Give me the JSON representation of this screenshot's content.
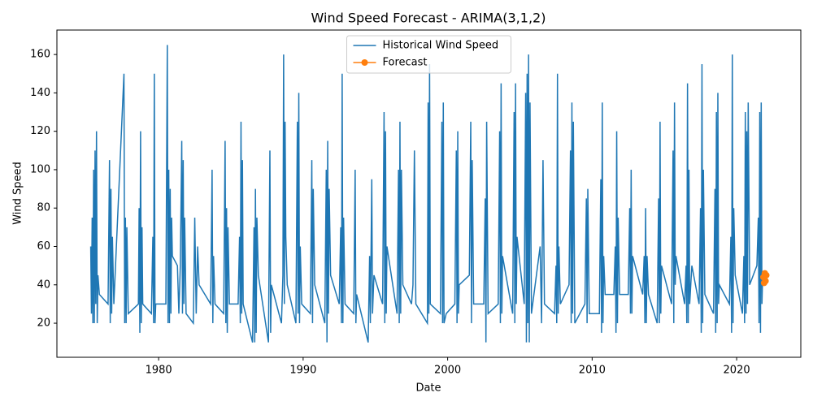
{
  "chart_data": {
    "type": "line",
    "title": "Wind Speed Forecast - ARIMA(3,1,2)",
    "xlabel": "Date",
    "ylabel": "Wind Speed",
    "xlim": [
      1972.96,
      2024.44
    ],
    "ylim": [
      2.25,
      172.75
    ],
    "xticks": [
      1980,
      1990,
      2000,
      2010,
      2020
    ],
    "yticks": [
      20,
      40,
      60,
      80,
      100,
      120,
      140,
      160
    ],
    "legend": "upper center",
    "series": [
      {
        "name": "Historical Wind Speed",
        "color": "#1f77b4",
        "marker": false,
        "x": [
          1975.3,
          1975.35,
          1975.4,
          1975.45,
          1975.5,
          1975.55,
          1975.6,
          1975.65,
          1975.7,
          1975.75,
          1975.8,
          1975.9,
          1976.5,
          1976.6,
          1976.65,
          1976.7,
          1976.75,
          1976.8,
          1976.9,
          1977.6,
          1977.65,
          1977.7,
          1977.75,
          1977.8,
          1977.9,
          1978.6,
          1978.65,
          1978.7,
          1978.75,
          1978.8,
          1978.85,
          1978.9,
          1979.5,
          1979.6,
          1979.65,
          1979.7,
          1979.75,
          1979.8,
          1980.5,
          1980.6,
          1980.65,
          1980.7,
          1980.75,
          1980.8,
          1980.85,
          1980.9,
          1980.95,
          1981.3,
          1981.4,
          1981.5,
          1981.6,
          1981.65,
          1981.7,
          1981.75,
          1981.8,
          1981.9,
          1982.4,
          1982.5,
          1982.6,
          1982.7,
          1982.8,
          1983.6,
          1983.7,
          1983.75,
          1983.8,
          1983.9,
          1984.5,
          1984.6,
          1984.65,
          1984.7,
          1984.75,
          1984.8,
          1984.9,
          1985.5,
          1985.6,
          1985.65,
          1985.7,
          1985.75,
          1985.8,
          1985.85,
          1986.5,
          1986.6,
          1986.65,
          1986.7,
          1986.75,
          1986.8,
          1986.9,
          1987.6,
          1987.7,
          1987.75,
          1987.8,
          1988.5,
          1988.6,
          1988.65,
          1988.7,
          1988.75,
          1988.8,
          1988.9,
          1989.5,
          1989.6,
          1989.65,
          1989.7,
          1989.75,
          1989.8,
          1989.9,
          1990.5,
          1990.6,
          1990.65,
          1990.7,
          1990.8,
          1991.5,
          1991.6,
          1991.65,
          1991.7,
          1991.75,
          1991.8,
          1991.9,
          1992.5,
          1992.6,
          1992.65,
          1992.7,
          1992.75,
          1992.8,
          1992.9,
          1993.5,
          1993.6,
          1993.65,
          1993.7,
          1994.5,
          1994.6,
          1994.65,
          1994.75,
          1994.8,
          1994.9,
          1995.5,
          1995.6,
          1995.65,
          1995.7,
          1995.75,
          1995.8,
          1996.5,
          1996.6,
          1996.65,
          1996.7,
          1996.75,
          1996.8,
          1996.9,
          1997.5,
          1997.6,
          1997.7,
          1997.8,
          1998.6,
          1998.65,
          1998.7,
          1998.75,
          1998.8,
          1999.5,
          1999.6,
          1999.65,
          1999.7,
          1999.75,
          1999.9,
          2000.5,
          2000.6,
          2000.65,
          2000.7,
          2000.75,
          2000.8,
          2001.5,
          2001.6,
          2001.65,
          2001.7,
          2001.8,
          2002.5,
          2002.6,
          2002.65,
          2002.7,
          2002.8,
          2003.5,
          2003.6,
          2003.65,
          2003.7,
          2003.75,
          2003.8,
          2004.5,
          2004.6,
          2004.65,
          2004.7,
          2004.75,
          2004.8,
          2005.3,
          2005.4,
          2005.45,
          2005.5,
          2005.55,
          2005.6,
          2005.65,
          2005.7,
          2005.8,
          2006.4,
          2006.5,
          2006.6,
          2006.7,
          2007.4,
          2007.5,
          2007.55,
          2007.6,
          2007.65,
          2007.7,
          2007.8,
          2008.4,
          2008.5,
          2008.55,
          2008.6,
          2008.65,
          2008.7,
          2008.8,
          2009.5,
          2009.6,
          2009.65,
          2009.7,
          2009.8,
          2010.5,
          2010.6,
          2010.65,
          2010.7,
          2010.75,
          2010.8,
          2010.9,
          2011.5,
          2011.6,
          2011.65,
          2011.7,
          2011.75,
          2011.8,
          2011.9,
          2012.5,
          2012.6,
          2012.65,
          2012.7,
          2012.75,
          2012.8,
          2013.5,
          2013.6,
          2013.65,
          2013.7,
          2013.75,
          2013.8,
          2013.9,
          2014.5,
          2014.6,
          2014.65,
          2014.7,
          2014.75,
          2014.8,
          2015.5,
          2015.6,
          2015.65,
          2015.7,
          2015.75,
          2015.8,
          2016.4,
          2016.5,
          2016.55,
          2016.6,
          2016.65,
          2016.7,
          2016.75,
          2016.9,
          2017.4,
          2017.5,
          2017.55,
          2017.6,
          2017.65,
          2017.7,
          2017.8,
          2018.4,
          2018.5,
          2018.55,
          2018.6,
          2018.65,
          2018.7,
          2018.75,
          2018.8,
          2019.5,
          2019.6,
          2019.65,
          2019.7,
          2019.75,
          2019.8,
          2019.9,
          2020.4,
          2020.5,
          2020.55,
          2020.6,
          2020.65,
          2020.7,
          2020.75,
          2020.8,
          2020.9,
          2021.4,
          2021.5,
          2021.55,
          2021.6,
          2021.65,
          2021.7,
          2021.75,
          2021.8
        ],
        "values": [
          60,
          25,
          75,
          20,
          100,
          20,
          110,
          30,
          120,
          20,
          45,
          35,
          30,
          105,
          20,
          90,
          25,
          65,
          30,
          150,
          20,
          75,
          20,
          70,
          25,
          30,
          80,
          15,
          120,
          20,
          70,
          30,
          25,
          65,
          20,
          150,
          20,
          30,
          30,
          165,
          20,
          100,
          20,
          90,
          25,
          75,
          55,
          50,
          25,
          50,
          115,
          25,
          105,
          30,
          75,
          25,
          20,
          75,
          25,
          60,
          40,
          30,
          100,
          20,
          55,
          30,
          25,
          115,
          20,
          80,
          15,
          70,
          30,
          30,
          65,
          20,
          125,
          25,
          105,
          30,
          10,
          70,
          10,
          90,
          15,
          75,
          45,
          10,
          110,
          15,
          40,
          20,
          45,
          160,
          30,
          125,
          65,
          40,
          20,
          125,
          25,
          140,
          20,
          60,
          30,
          25,
          105,
          20,
          90,
          40,
          20,
          100,
          10,
          115,
          25,
          90,
          45,
          30,
          70,
          20,
          150,
          20,
          75,
          30,
          25,
          100,
          20,
          35,
          10,
          55,
          20,
          95,
          25,
          45,
          30,
          130,
          20,
          120,
          25,
          60,
          25,
          100,
          20,
          125,
          25,
          100,
          40,
          30,
          40,
          110,
          30,
          20,
          135,
          25,
          155,
          30,
          25,
          125,
          20,
          135,
          20,
          25,
          30,
          110,
          20,
          120,
          25,
          40,
          45,
          125,
          20,
          105,
          30,
          30,
          85,
          10,
          125,
          25,
          30,
          120,
          20,
          145,
          25,
          55,
          25,
          130,
          20,
          145,
          30,
          65,
          30,
          140,
          10,
          150,
          20,
          160,
          10,
          135,
          25,
          60,
          20,
          105,
          30,
          25,
          50,
          20,
          150,
          25,
          60,
          30,
          40,
          110,
          20,
          135,
          25,
          125,
          20,
          30,
          85,
          20,
          90,
          25,
          25,
          95,
          15,
          135,
          20,
          55,
          35,
          35,
          60,
          15,
          120,
          20,
          75,
          35,
          35,
          80,
          25,
          100,
          25,
          55,
          35,
          55,
          20,
          80,
          20,
          55,
          35,
          20,
          85,
          20,
          125,
          25,
          50,
          30,
          110,
          20,
          135,
          40,
          55,
          30,
          50,
          20,
          145,
          20,
          100,
          30,
          50,
          30,
          80,
          15,
          155,
          20,
          100,
          35,
          25,
          90,
          15,
          130,
          20,
          140,
          30,
          40,
          30,
          65,
          15,
          160,
          20,
          80,
          45,
          25,
          55,
          20,
          130,
          25,
          120,
          30,
          135,
          40,
          50,
          75,
          20,
          130,
          15,
          135,
          30,
          45
        ]
      },
      {
        "name": "Forecast",
        "color": "#ff7f0e",
        "marker": true,
        "x": [
          2021.85,
          2021.9,
          2021.95,
          2022.0,
          2022.05
        ],
        "values": [
          44,
          41,
          46,
          42,
          45
        ]
      }
    ]
  }
}
